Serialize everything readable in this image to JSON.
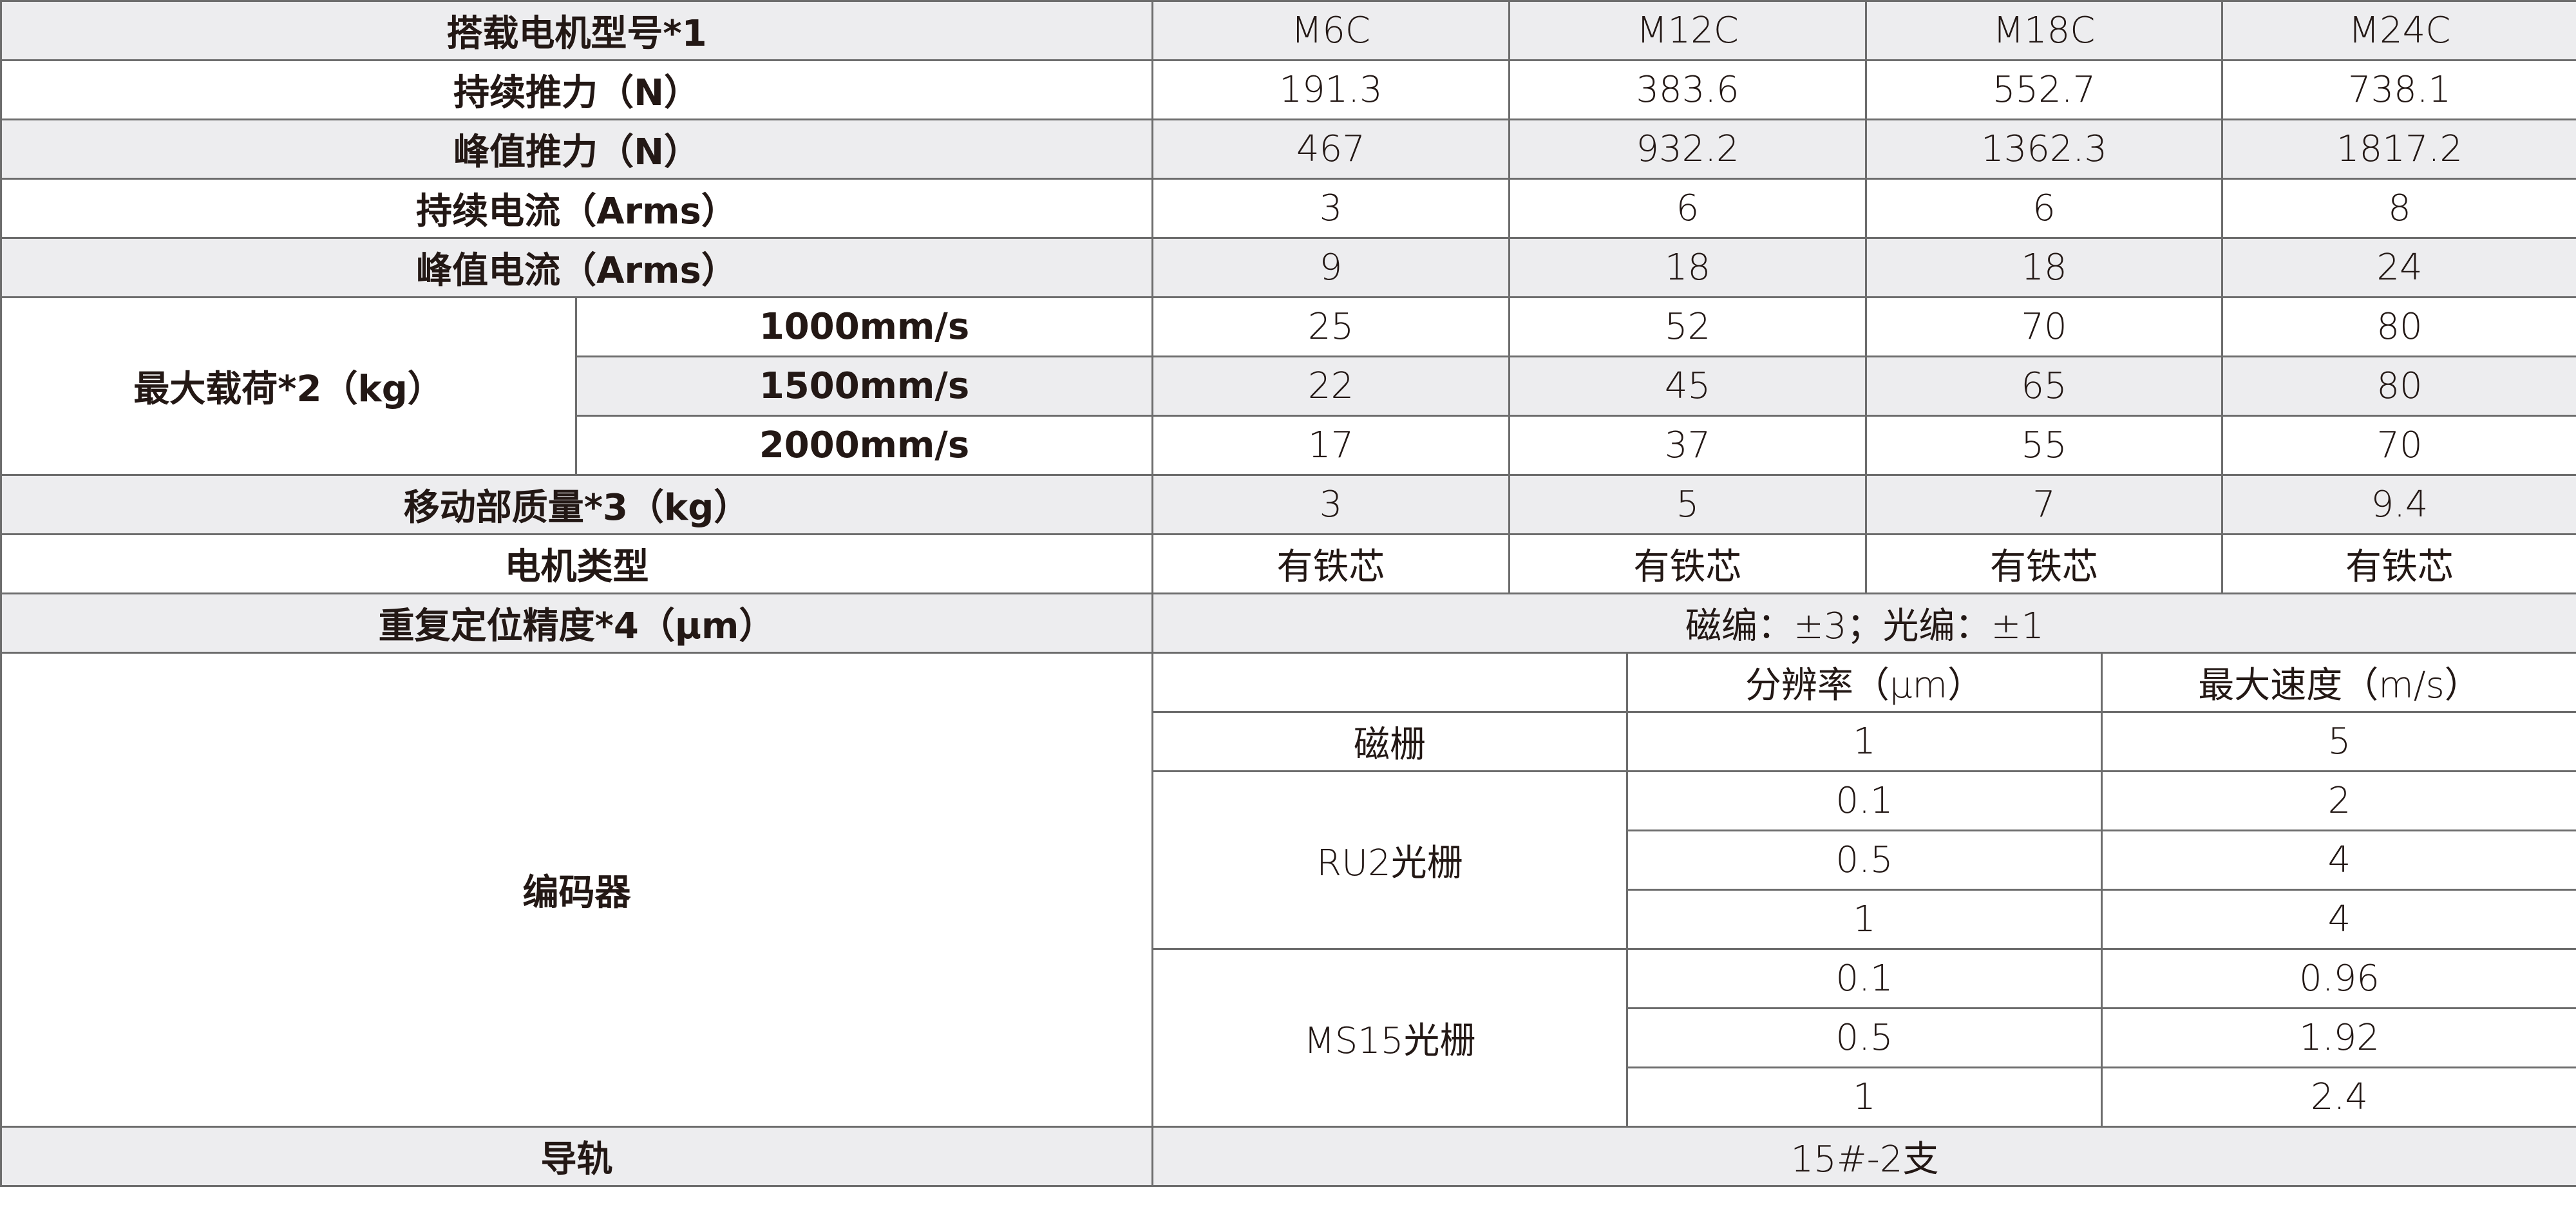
{
  "colors": {
    "shaded_row": "#ededef",
    "border": "#6d6d6d",
    "text": "#231815"
  },
  "header": {
    "label": "搭载电机型号*1",
    "models": [
      "M6C",
      "M12C",
      "M18C",
      "M24C"
    ]
  },
  "rows": [
    {
      "label": "持续推力（N）",
      "values": [
        "191.3",
        "383.6",
        "552.7",
        "738.1"
      ]
    },
    {
      "label": "峰值推力（N）",
      "values": [
        "467",
        "932.2",
        "1362.3",
        "1817.2"
      ]
    },
    {
      "label": "持续电流（Arms）",
      "values": [
        "3",
        "6",
        "6",
        "8"
      ]
    },
    {
      "label": "峰值电流（Arms）",
      "values": [
        "9",
        "18",
        "18",
        "24"
      ]
    }
  ],
  "max_load": {
    "label": "最大载荷*2（kg）",
    "rows": [
      {
        "speed": "1000mm/s",
        "values": [
          "25",
          "52",
          "70",
          "80"
        ]
      },
      {
        "speed": "1500mm/s",
        "values": [
          "22",
          "45",
          "65",
          "80"
        ]
      },
      {
        "speed": "2000mm/s",
        "values": [
          "17",
          "37",
          "55",
          "70"
        ]
      }
    ]
  },
  "moving_mass": {
    "label": "移动部质量*3（kg）",
    "values": [
      "3",
      "5",
      "7",
      "9.4"
    ]
  },
  "motor_type": {
    "label": "电机类型",
    "values": [
      "有铁芯",
      "有铁芯",
      "有铁芯",
      "有铁芯"
    ]
  },
  "repeatability": {
    "label": "重复定位精度*4（μm）",
    "value": "磁编：±3；光编：±1"
  },
  "encoder": {
    "label": "编码器",
    "col_resolution": "分辨率（μm）",
    "col_speed": "最大速度（m/s）",
    "magnetic": {
      "name": "磁栅",
      "resolution": "1",
      "speed": "5"
    },
    "ru2": {
      "name": "RU2光栅",
      "rows": [
        {
          "resolution": "0.1",
          "speed": "2"
        },
        {
          "resolution": "0.5",
          "speed": "4"
        },
        {
          "resolution": "1",
          "speed": "4"
        }
      ]
    },
    "ms15": {
      "name": "MS15光栅",
      "rows": [
        {
          "resolution": "0.1",
          "speed": "0.96"
        },
        {
          "resolution": "0.5",
          "speed": "1.92"
        },
        {
          "resolution": "1",
          "speed": "2.4"
        }
      ]
    }
  },
  "rail": {
    "label": "导轨",
    "value": "15#-2支"
  }
}
